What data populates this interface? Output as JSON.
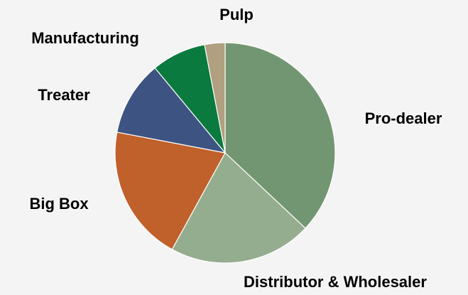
{
  "chart_data": {
    "type": "pie",
    "categories": [
      "Pro-dealer",
      "Distributor & Wholesaler",
      "Big Box",
      "Treater",
      "Manufacturing",
      "Pulp"
    ],
    "values": [
      37,
      21,
      20,
      11,
      8,
      3
    ],
    "colors": [
      "#739672",
      "#94ad8e",
      "#c0602a",
      "#3d5482",
      "#0a7a3e",
      "#b0a080"
    ]
  }
}
